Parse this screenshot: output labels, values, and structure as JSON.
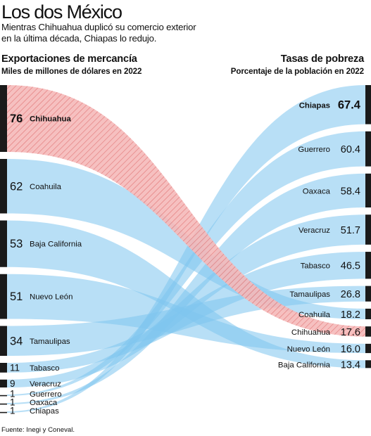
{
  "title": "Los dos México",
  "subtitle": "Mientras Chihuahua duplicó su comercio exterior\nen la última década, Chiapas lo redujo.",
  "source": "Fuente: Inegi y Coneval.",
  "colors": {
    "flow": "#7ec4ef",
    "highlight_fill": "#f5b9b9",
    "highlight_hatch": "#e06b6b",
    "bar": "#1a1a1a"
  },
  "chart_data": {
    "type": "sankey",
    "left": {
      "title": "Exportaciones de mercancía",
      "subtitle": "Miles de millones de dólares en 2022",
      "items": [
        {
          "name": "Chihuahua",
          "value": 76,
          "highlight": true
        },
        {
          "name": "Coahuila",
          "value": 62
        },
        {
          "name": "Baja California",
          "value": 53
        },
        {
          "name": "Nuevo León",
          "value": 51
        },
        {
          "name": "Tamaulipas",
          "value": 34
        },
        {
          "name": "Tabasco",
          "value": 11
        },
        {
          "name": "Veracruz",
          "value": 9
        },
        {
          "name": "Guerrero",
          "value": 1
        },
        {
          "name": "Oaxaca",
          "value": 1
        },
        {
          "name": "Chiapas",
          "value": 1
        }
      ]
    },
    "right": {
      "title": "Tasas de pobreza",
      "subtitle": "Porcentaje de la población en 2022",
      "items": [
        {
          "name": "Chiapas",
          "value": 67.4,
          "bold": true
        },
        {
          "name": "Guerrero",
          "value": 60.4
        },
        {
          "name": "Oaxaca",
          "value": 58.4
        },
        {
          "name": "Veracruz",
          "value": 51.7
        },
        {
          "name": "Tabasco",
          "value": 46.5
        },
        {
          "name": "Tamaulipas",
          "value": 26.8
        },
        {
          "name": "Coahuila",
          "value": 18.2
        },
        {
          "name": "Chihuahua",
          "value": 17.6,
          "highlight": true
        },
        {
          "name": "Nuevo León",
          "value": 16.0
        },
        {
          "name": "Baja California",
          "value": 13.4
        }
      ]
    }
  }
}
